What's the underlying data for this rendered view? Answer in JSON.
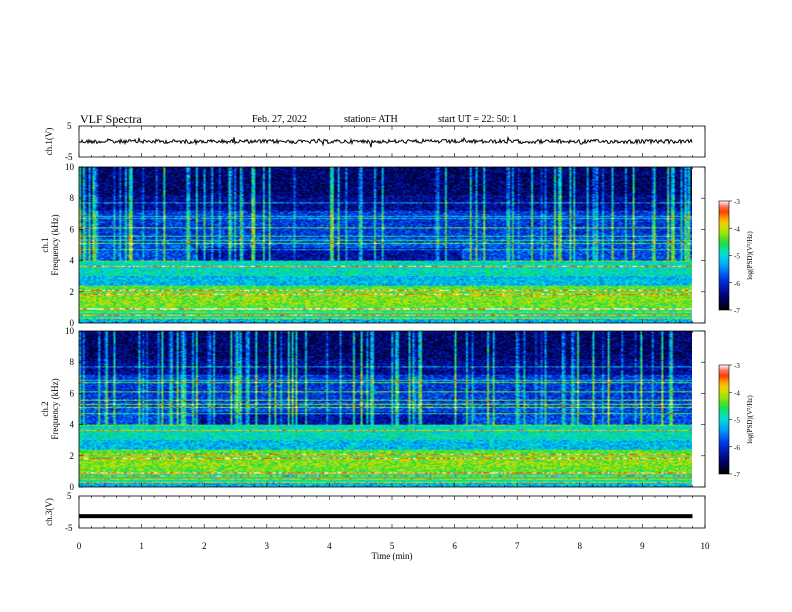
{
  "header": {
    "title": "VLF  Spectra",
    "date": "Feb. 27, 2022",
    "station": "station= ATH",
    "start": "start  UT  =    22: 50: 1"
  },
  "chart_data": [
    {
      "type": "line",
      "name": "ch1-waveform",
      "ylabel": "ch.1(V)",
      "ylim": [
        -5,
        5
      ],
      "yticks": [
        "5",
        "-5"
      ],
      "xlim": [
        0,
        10
      ],
      "description_level_v": 0
    },
    {
      "type": "heatmap",
      "name": "ch1-spectrogram",
      "ylabel": "ch.1",
      "ylabel2": "Frequency  (kHz)",
      "ylim": [
        0,
        10
      ],
      "yticks": [
        "0",
        "2",
        "4",
        "6",
        "8",
        "10"
      ],
      "xlim": [
        0,
        9.8
      ],
      "colorbar": {
        "label": "log(PSD)(V²/Hz)",
        "range": [
          -7,
          -3
        ],
        "ticks": [
          "-3",
          "-4",
          "-5",
          "-6",
          "-7"
        ]
      }
    },
    {
      "type": "heatmap",
      "name": "ch2-spectrogram",
      "ylabel": "ch.2",
      "ylabel2": "Frequency  (kHz)",
      "ylim": [
        0,
        10
      ],
      "yticks": [
        "0",
        "2",
        "4",
        "6",
        "8",
        "10"
      ],
      "xlim": [
        0,
        9.8
      ],
      "colorbar": {
        "label": "log(PSD)(V²/Hz)",
        "range": [
          -7,
          -3
        ],
        "ticks": [
          "-3",
          "-4",
          "-5",
          "-6",
          "-7"
        ]
      }
    },
    {
      "type": "line",
      "name": "ch3-waveform",
      "ylabel": "ch.3(V)",
      "ylim": [
        -5,
        5
      ],
      "yticks": [
        "5",
        "-5"
      ],
      "xlim": [
        0,
        10
      ],
      "xlabel": "Time  (min)",
      "xticks": [
        "0",
        "1",
        "2",
        "3",
        "4",
        "5",
        "6",
        "7",
        "8",
        "9",
        "10"
      ]
    }
  ]
}
